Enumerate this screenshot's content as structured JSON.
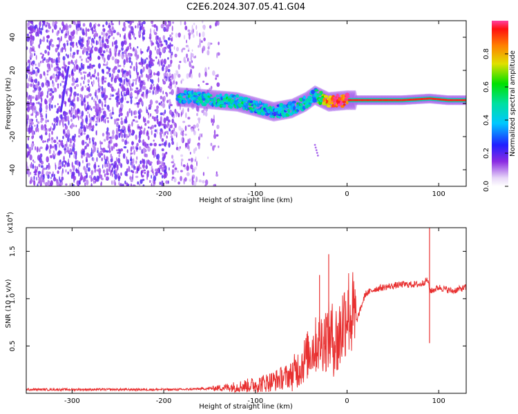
{
  "title": "C2E6.2024.307.05.41.G04",
  "chart_data": [
    {
      "type": "heatmap",
      "xlabel": "Height of straight line (km)",
      "ylabel": "Frequency (Hz)",
      "xlim": [
        -350,
        130
      ],
      "ylim": [
        -50,
        50
      ],
      "x_ticks": [
        -300,
        -200,
        -100,
        0,
        100
      ],
      "x_tick_labels": [
        "-300",
        "-200",
        "-100",
        "0",
        "100"
      ],
      "y_ticks": [
        -40,
        -20,
        0,
        20,
        40
      ],
      "y_tick_labels": [
        "-40",
        "-20",
        "0",
        "20",
        "40"
      ],
      "colorbar": {
        "label": "Normalized spectral amplitude",
        "range": [
          0,
          1
        ],
        "ticks": [
          0.0,
          0.2,
          0.4,
          0.6,
          0.8
        ],
        "tick_labels": [
          "0.0",
          "0.2",
          "0.4",
          "0.6",
          "0.8"
        ]
      },
      "ridge": {
        "x": [
          -185,
          -160,
          -140,
          -120,
          -100,
          -80,
          -60,
          -45,
          -35,
          -20,
          0,
          20,
          60,
          90,
          110,
          130
        ],
        "freq": [
          4,
          3,
          2,
          1,
          -2,
          -5,
          -3,
          1,
          5,
          1,
          2,
          2,
          2,
          3,
          2,
          2
        ],
        "amplitude": [
          0.45,
          0.45,
          0.45,
          0.5,
          0.45,
          0.4,
          0.45,
          0.5,
          0.45,
          0.9,
          0.95,
          0.95,
          0.95,
          0.95,
          0.95,
          0.95
        ]
      },
      "grid": false
    },
    {
      "type": "line",
      "xlabel": "Height of straight line (km)",
      "ylabel": "SNR (10 * v/v)",
      "y_multiplier_label": "(x10",
      "y_multiplier_exp": "4",
      "xlim": [
        -350,
        130
      ],
      "ylim": [
        0,
        1.75
      ],
      "x_ticks": [
        -300,
        -200,
        -100,
        0,
        100
      ],
      "x_tick_labels": [
        "-300",
        "-200",
        "-100",
        "0",
        "100"
      ],
      "y_ticks": [
        0.5,
        1.0,
        1.5
      ],
      "y_tick_labels": [
        "0.5",
        "1.0",
        "1.5"
      ],
      "series": [
        {
          "color": "#e83030",
          "x": [
            -350,
            -250,
            -180,
            -150,
            -120,
            -100,
            -80,
            -60,
            -50,
            -40,
            -30,
            -20,
            -10,
            0,
            10,
            20,
            30,
            40,
            60,
            80,
            88,
            90,
            92,
            100,
            115,
            130
          ],
          "y": [
            0.04,
            0.04,
            0.04,
            0.05,
            0.07,
            0.09,
            0.13,
            0.2,
            0.3,
            0.45,
            0.55,
            0.6,
            0.55,
            0.9,
            0.75,
            1.05,
            1.1,
            1.12,
            1.15,
            1.15,
            1.2,
            1.1,
            1.08,
            1.12,
            1.08,
            1.12
          ]
        }
      ],
      "spikes": [
        {
          "x": -30,
          "y": 1.25
        },
        {
          "x": -20,
          "y": 1.47
        },
        {
          "x": -10,
          "y": 0.25
        },
        {
          "x": 90,
          "y": 1.75
        },
        {
          "x": 90,
          "y": 0.53
        }
      ],
      "grid": false
    }
  ]
}
